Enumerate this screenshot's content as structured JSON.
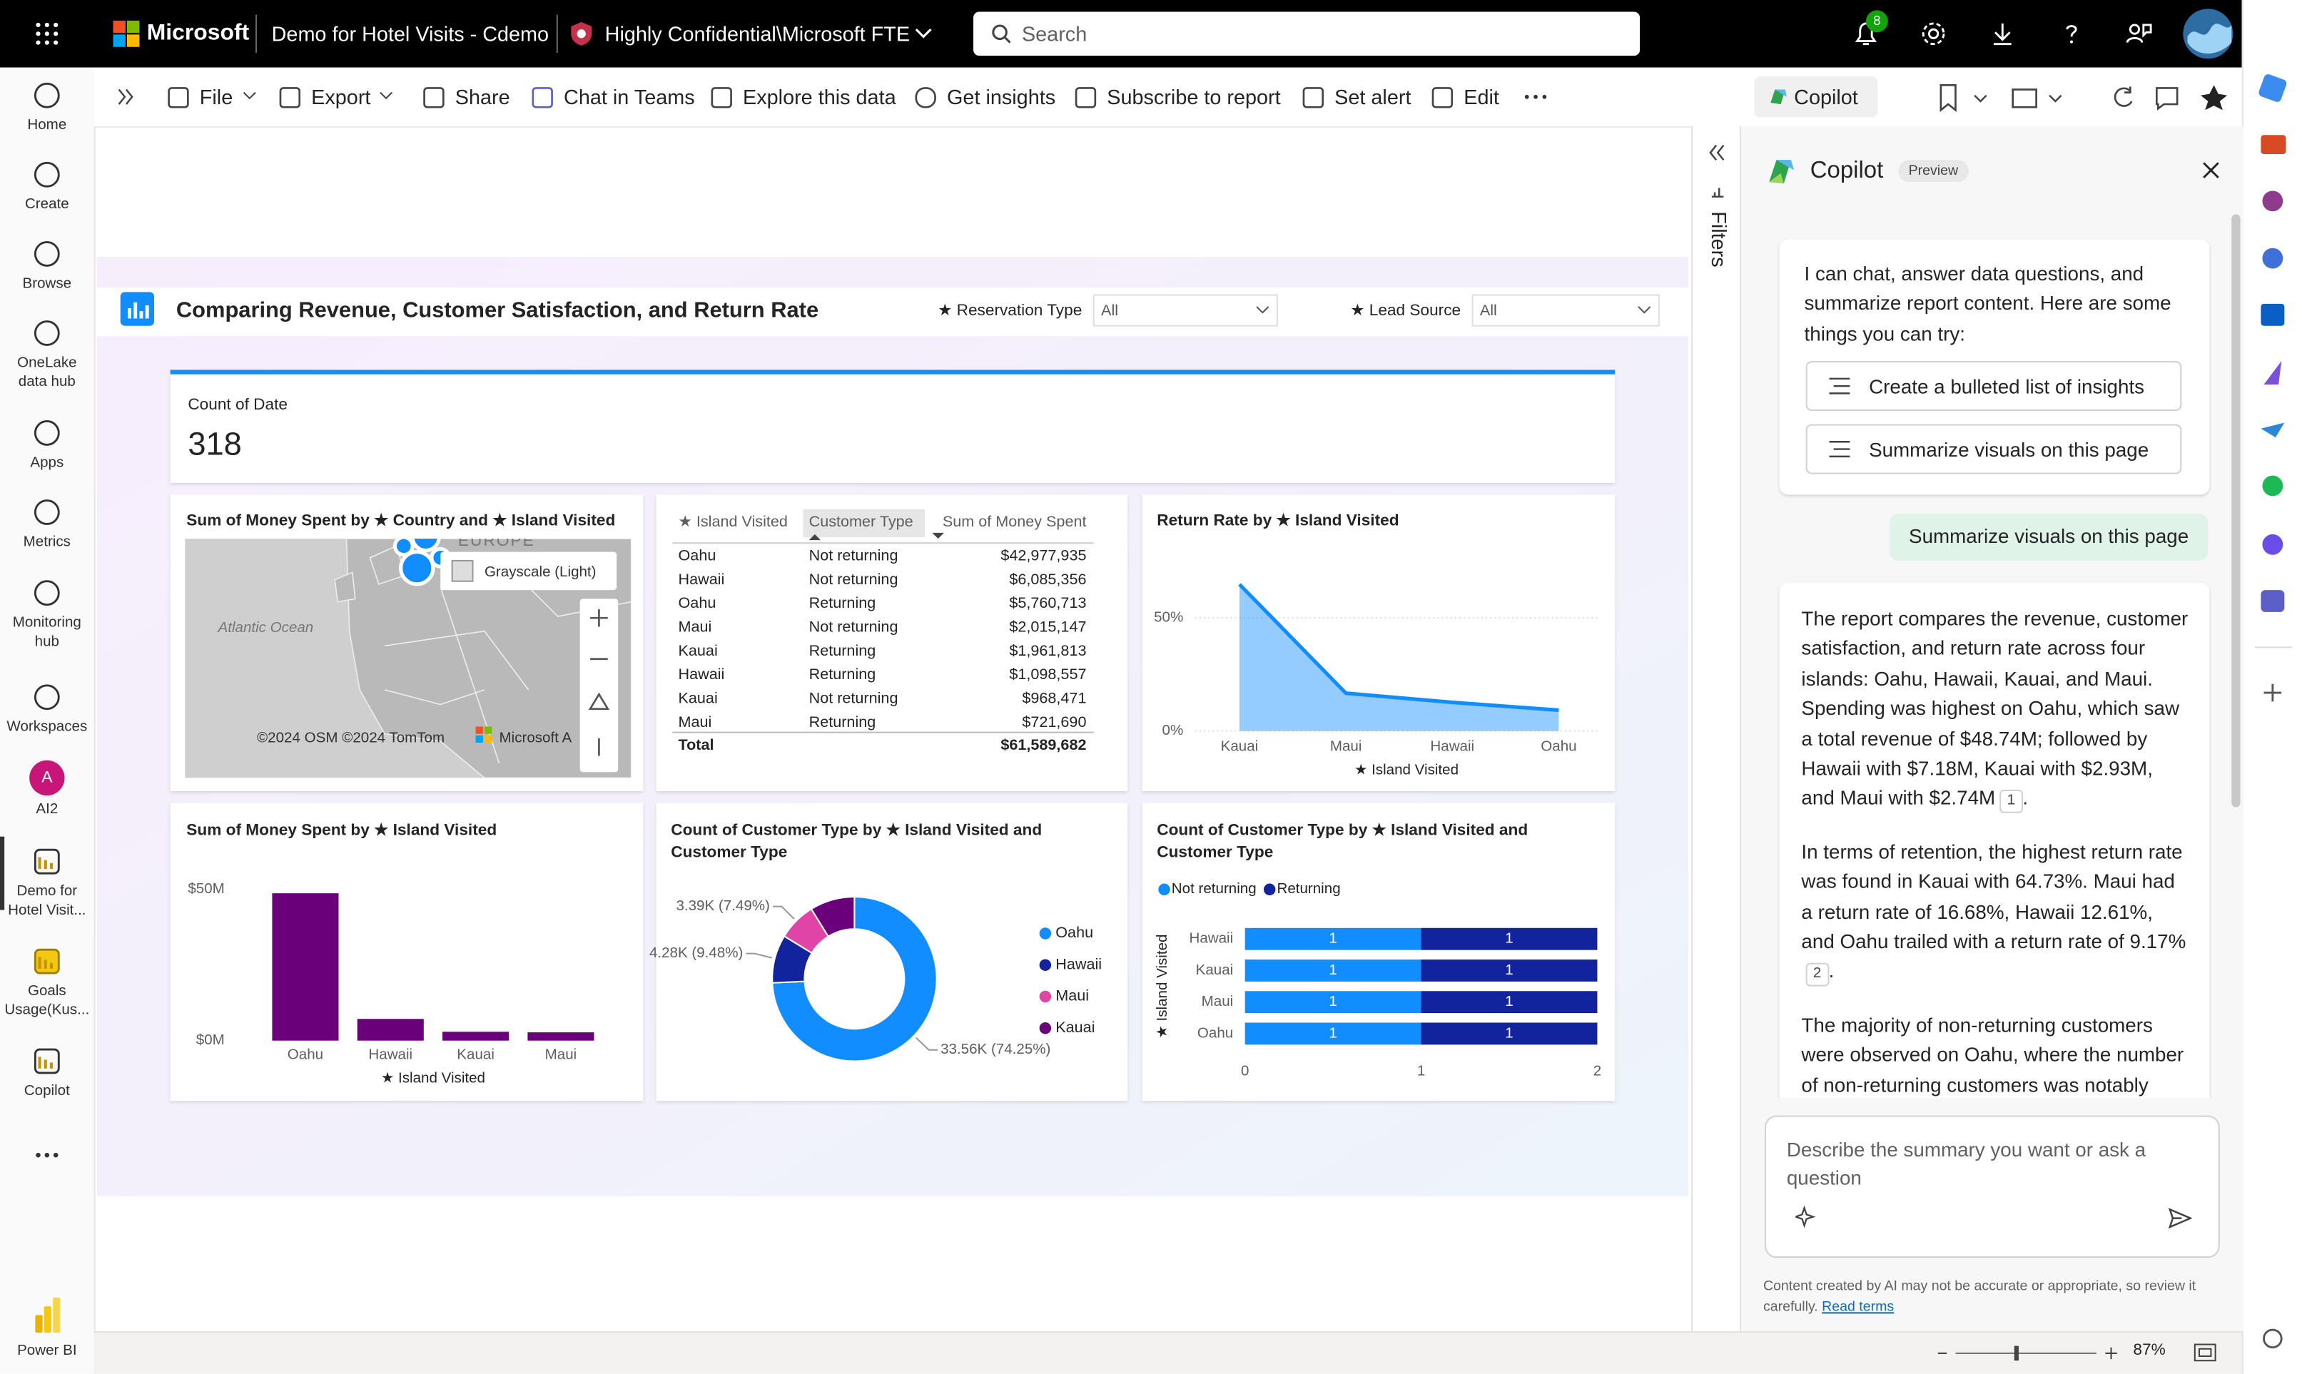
{
  "top_bar": {
    "brand": "Microsoft",
    "report_name": "Demo for Hotel Visits - Cdemo",
    "sensitivity": "Highly Confidential\\Microsoft FTE",
    "search_placeholder": "Search",
    "notification_count": "8"
  },
  "nav": [
    {
      "label": "Home"
    },
    {
      "label": "Create"
    },
    {
      "label": "Browse"
    },
    {
      "label": "OneLake data hub"
    },
    {
      "label": "Apps"
    },
    {
      "label": "Metrics"
    },
    {
      "label": "Monitoring hub"
    },
    {
      "label": "Workspaces"
    },
    {
      "label": "AI2",
      "avatar": "A"
    },
    {
      "label": "Demo for Hotel Visit..."
    },
    {
      "label": "Goals Usage(Kus..."
    },
    {
      "label": "Copilot"
    }
  ],
  "nav_footer": "Power BI",
  "toolbar": [
    "File",
    "Export",
    "Share",
    "Chat in Teams",
    "Explore this data",
    "Get insights",
    "Subscribe to report",
    "Set alert",
    "Edit"
  ],
  "copilot_tab": "Copilot",
  "filters_label": "Filters",
  "report": {
    "title": "Comparing Revenue, Customer Satisfaction, and Return Rate",
    "slicers": [
      {
        "label": "★ Reservation Type",
        "value": "All"
      },
      {
        "label": "★ Lead Source",
        "value": "All"
      }
    ],
    "card": {
      "label": "Count of Date",
      "value": "318"
    },
    "map": {
      "title": "Sum of Money Spent by ★ Country and ★ Island Visited",
      "region_label": "EUROPE",
      "ocean_label": "Atlantic Ocean",
      "style_label": "Grayscale (Light)",
      "attribution": "©2024 OSM ©2024 TomTom",
      "attribution_brand": "Microsoft A"
    },
    "table": {
      "columns": [
        "★ Island Visited",
        "Customer Type",
        "Sum of Money Spent"
      ],
      "rows": [
        [
          "Oahu",
          "Not returning",
          "$42,977,935"
        ],
        [
          "Hawaii",
          "Not returning",
          "$6,085,356"
        ],
        [
          "Oahu",
          "Returning",
          "$5,760,713"
        ],
        [
          "Maui",
          "Not returning",
          "$2,015,147"
        ],
        [
          "Kauai",
          "Returning",
          "$1,961,813"
        ],
        [
          "Hawaii",
          "Returning",
          "$1,098,557"
        ],
        [
          "Kauai",
          "Not returning",
          "$968,471"
        ],
        [
          "Maui",
          "Returning",
          "$721,690"
        ]
      ],
      "total": [
        "Total",
        "$61,589,682"
      ]
    },
    "charts": [
      {
        "type": "area",
        "title": "Return Rate by ★ Island Visited",
        "x_label": "★ Island Visited",
        "categories": [
          "Kauai",
          "Maui",
          "Hawaii",
          "Oahu"
        ],
        "values": [
          64.73,
          16.68,
          12.61,
          9.17
        ],
        "color": "#118DFF",
        "ylim": [
          0,
          70
        ],
        "yticks": [
          {
            "value": 0,
            "label": "0%"
          },
          {
            "value": 50,
            "label": "50%"
          }
        ],
        "grid": true
      },
      {
        "type": "bar",
        "title": "Sum of Money Spent by ★ Island Visited",
        "x_label": "★ Island Visited",
        "categories": [
          "Oahu",
          "Hawaii",
          "Kauai",
          "Maui"
        ],
        "values": [
          48740000,
          7180000,
          2930000,
          2740000
        ],
        "color": "#6B007B",
        "ylim": [
          0,
          55000000
        ],
        "yticks": [
          {
            "value": 0,
            "label": "$0M"
          },
          {
            "value": 50000000,
            "label": "$50M"
          }
        ]
      },
      {
        "type": "donut",
        "title": "Count of Customer Type by ★ Island Visited and Customer Type",
        "categories": [
          "Oahu",
          "Hawaii",
          "Maui",
          "Kauai"
        ],
        "colors": [
          "#118DFF",
          "#12239E",
          "#E044A7",
          "#6B007B"
        ],
        "values": [
          33560,
          4280,
          3390,
          3970
        ],
        "value_labels": [
          "33.56K (74.25%)",
          "4.28K (9.48%)",
          "3.39K (7.49%)",
          null
        ]
      },
      {
        "type": "stacked_hbar",
        "title": "Count of Customer Type by ★ Island Visited and Customer Type",
        "y_label": "★ Island Visited",
        "categories": [
          "Hawaii",
          "Kauai",
          "Maui",
          "Oahu"
        ],
        "series": [
          {
            "name": "Not returning",
            "color": "#118DFF",
            "values": [
              1,
              1,
              1,
              1
            ]
          },
          {
            "name": "Returning",
            "color": "#12239E",
            "values": [
              1,
              1,
              1,
              1
            ]
          }
        ],
        "xlim": [
          0,
          2
        ],
        "xticks": [
          0,
          1,
          2
        ]
      }
    ]
  },
  "copilot": {
    "title": "Copilot",
    "badge": "Preview",
    "intro": "I can chat, answer data questions, and summarize report content. Here are some things you can try:",
    "suggestions": [
      "Create a bulleted list of insights",
      "Summarize visuals on this page"
    ],
    "user_message": "Summarize visuals on this page",
    "response": [
      {
        "text": "The report compares the revenue, customer satisfaction, and return rate across four islands: Oahu, Hawaii, Kauai, and Maui. Spending was highest on Oahu, which saw a total revenue of $48.74M; followed by Hawaii with $7.18M, Kauai with $2.93M, and Maui with $2.74M",
        "citation": "1",
        "end": "."
      },
      {
        "text": "In terms of retention, the highest return rate was found in Kauai with 64.73%. Maui had a return rate of 16.68%, Hawaii 12.61%, and Oahu trailed with a return rate of 9.17%",
        "citation": "2",
        "end": "."
      },
      {
        "text": "The majority of non-returning customers were observed on Oahu, where the number of non-returning customers was notably"
      }
    ],
    "input_placeholder": "Describe the summary you want or ask a question",
    "disclaimer": "Content created by AI may not be accurate or appropriate, so review it carefully.",
    "terms_link": "Read terms"
  },
  "status": {
    "zoom": "87%"
  }
}
